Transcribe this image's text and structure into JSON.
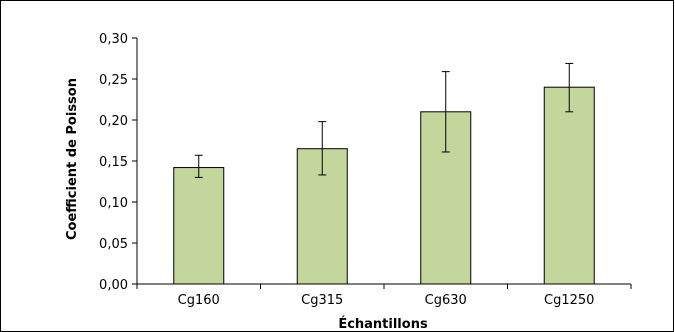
{
  "chart_data": {
    "type": "bar",
    "title": "",
    "xlabel": "Échantillons",
    "ylabel": "Coefficient de Poisson",
    "ylim": [
      0,
      0.3
    ],
    "yticks": [
      "0,00",
      "0,05",
      "0,10",
      "0,15",
      "0,20",
      "0,25",
      "0,30"
    ],
    "ytick_values": [
      0,
      0.05,
      0.1,
      0.15,
      0.2,
      0.25,
      0.3
    ],
    "categories": [
      "Cg160",
      "Cg315",
      "Cg630",
      "Cg1250"
    ],
    "values": [
      0.142,
      0.165,
      0.21,
      0.24
    ],
    "error_low": [
      0.13,
      0.133,
      0.161,
      0.21
    ],
    "error_high": [
      0.157,
      0.198,
      0.259,
      0.269
    ],
    "grid": false,
    "legend": "none",
    "bar_color": "#c3d69b"
  }
}
